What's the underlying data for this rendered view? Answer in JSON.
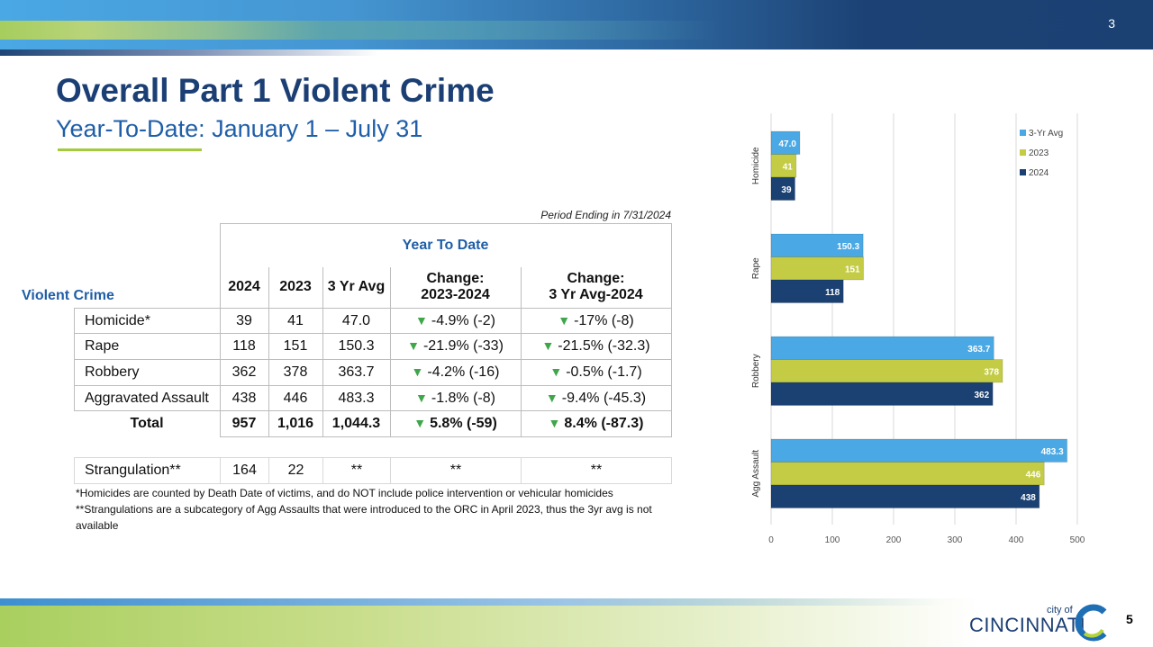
{
  "slide": {
    "top_number": "3",
    "page_number": "5",
    "title": "Overall Part 1 Violent Crime",
    "subtitle": "Year-To-Date: January 1 – July 31",
    "period": "Period Ending in 7/31/2024",
    "logo": {
      "small": "city of",
      "name": "CINCINNATI"
    }
  },
  "colors": {
    "navy": "#1b4173",
    "green": "#c3cc44",
    "lightblue": "#4aa8e4",
    "down_arrow": "#3fa64a"
  },
  "table": {
    "row_header": "Violent Crime",
    "group_header": "Year To Date",
    "columns": [
      "2024",
      "2023",
      "3 Yr Avg",
      "Change:\n2023-2024",
      "Change:\n3 Yr Avg-2024"
    ],
    "col4_l1": "Change:",
    "col4_l2": "2023-2024",
    "col5_l1": "Change:",
    "col5_l2": "3 Yr Avg-2024",
    "arrow": "▼",
    "rows": [
      {
        "label": "Homicide*",
        "y2024": "39",
        "y2023": "41",
        "avg": "47.0",
        "chg1": "-4.9% (-2)",
        "chg2": "-17% (-8)"
      },
      {
        "label": "Rape",
        "y2024": "118",
        "y2023": "151",
        "avg": "150.3",
        "chg1": "-21.9% (-33)",
        "chg2": "-21.5% (-32.3)"
      },
      {
        "label": "Robbery",
        "y2024": "362",
        "y2023": "378",
        "avg": "363.7",
        "chg1": "-4.2% (-16)",
        "chg2": "-0.5% (-1.7)"
      },
      {
        "label": "Aggravated Assault",
        "y2024": "438",
        "y2023": "446",
        "avg": "483.3",
        "chg1": "-1.8% (-8)",
        "chg2": "-9.4% (-45.3)"
      }
    ],
    "total": {
      "label": "Total",
      "y2024": "957",
      "y2023": "1,016",
      "avg": "1,044.3",
      "chg1": "5.8% (-59)",
      "chg2": "8.4% (-87.3)"
    },
    "strangulation": {
      "label": "Strangulation**",
      "y2024": "164",
      "y2023": "22",
      "avg": "**",
      "chg1": "**",
      "chg2": "**"
    },
    "footnotes": [
      "*Homicides are counted by Death Date of victims, and do NOT include police intervention or vehicular homicides",
      "**Strangulations are a subcategory of Agg Assaults that were introduced to the ORC in April 2023, thus the 3yr avg is not available"
    ]
  },
  "chart_data": {
    "type": "bar",
    "orientation": "horizontal",
    "categories": [
      "Homicide",
      "Rape",
      "Robbery",
      "Agg Assault"
    ],
    "series": [
      {
        "name": "3-Yr Avg",
        "values": [
          47.0,
          150.3,
          363.7,
          483.3
        ],
        "labels": [
          "47.0",
          "150.3",
          "363.7",
          "483.3"
        ],
        "color": "#4aa8e4"
      },
      {
        "name": "2023",
        "values": [
          41,
          151,
          378,
          446
        ],
        "labels": [
          "41",
          "151",
          "378",
          "446"
        ],
        "color": "#c3cc44"
      },
      {
        "name": "2024",
        "values": [
          39,
          118,
          362,
          438
        ],
        "labels": [
          "39",
          "118",
          "362",
          "438"
        ],
        "color": "#1b4173"
      }
    ],
    "xlim": [
      0,
      500
    ],
    "xticks": [
      "0",
      "100",
      "200",
      "300",
      "400",
      "500"
    ],
    "grid": true,
    "legend": "top-right"
  }
}
